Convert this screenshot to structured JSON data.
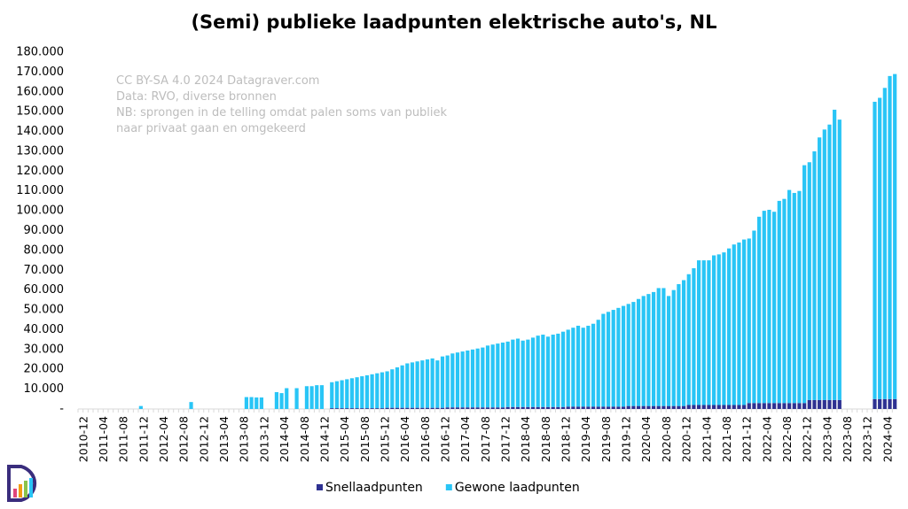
{
  "chart_data": {
    "type": "bar",
    "stacked": true,
    "title": "(Semi) publieke laadpunten elektrische auto's, NL",
    "annotations": [
      "CC BY-SA 4.0 2024 Datagraver.com",
      "Data: RVO, diverse bronnen",
      "NB: sprongen in de telling omdat palen soms van publiek",
      "naar privaat gaan en omgekeerd"
    ],
    "ylim": [
      0,
      180000
    ],
    "yticks": [
      {
        "value": 0,
        "label": "-"
      },
      {
        "value": 10000,
        "label": "10.000"
      },
      {
        "value": 20000,
        "label": "20.000"
      },
      {
        "value": 30000,
        "label": "30.000"
      },
      {
        "value": 40000,
        "label": "40.000"
      },
      {
        "value": 50000,
        "label": "50.000"
      },
      {
        "value": 60000,
        "label": "60.000"
      },
      {
        "value": 70000,
        "label": "70.000"
      },
      {
        "value": 80000,
        "label": "80.000"
      },
      {
        "value": 90000,
        "label": "90.000"
      },
      {
        "value": 100000,
        "label": "100.000"
      },
      {
        "value": 110000,
        "label": "110.000"
      },
      {
        "value": 120000,
        "label": "120.000"
      },
      {
        "value": 130000,
        "label": "130.000"
      },
      {
        "value": 140000,
        "label": "140.000"
      },
      {
        "value": 150000,
        "label": "150.000"
      },
      {
        "value": 160000,
        "label": "160.000"
      },
      {
        "value": 170000,
        "label": "170.000"
      },
      {
        "value": 180000,
        "label": "180.000"
      }
    ],
    "grid": false,
    "legend": "bottom",
    "categories": [
      "2010-12",
      null,
      null,
      null,
      "2011-04",
      null,
      null,
      null,
      "2011-08",
      null,
      null,
      null,
      "2011-12",
      null,
      null,
      null,
      "2012-04",
      null,
      null,
      null,
      "2012-08",
      null,
      null,
      null,
      "2012-12",
      null,
      null,
      null,
      "2013-04",
      null,
      null,
      null,
      "2013-08",
      null,
      null,
      null,
      "2013-12",
      null,
      null,
      null,
      "2014-04",
      null,
      null,
      null,
      "2014-08",
      null,
      null,
      null,
      "2014-12",
      null,
      null,
      null,
      "2015-04",
      null,
      null,
      null,
      "2015-08",
      null,
      null,
      null,
      "2015-12",
      null,
      null,
      null,
      "2016-04",
      null,
      null,
      null,
      "2016-08",
      null,
      null,
      null,
      "2016-12",
      null,
      null,
      null,
      "2017-04",
      null,
      null,
      null,
      "2017-08",
      null,
      null,
      null,
      "2017-12",
      null,
      null,
      null,
      "2018-04",
      null,
      null,
      null,
      "2018-08",
      null,
      null,
      null,
      "2018-12",
      null,
      null,
      null,
      "2019-04",
      null,
      null,
      null,
      "2019-08",
      null,
      null,
      null,
      "2019-12",
      null,
      null,
      null,
      "2020-04",
      null,
      null,
      null,
      "2020-08",
      null,
      null,
      null,
      "2020-12",
      null,
      null,
      null,
      "2021-04",
      null,
      null,
      null,
      "2021-08",
      null,
      null,
      null,
      "2021-12",
      null,
      null,
      null,
      "2022-04",
      null,
      null,
      null,
      "2022-08",
      null,
      null,
      null,
      "2022-12",
      null,
      null,
      null,
      "2023-04",
      null,
      null,
      null,
      "2023-08",
      null,
      null,
      null,
      "2023-12",
      null,
      null,
      null,
      "2024-04",
      null,
      null
    ],
    "series": [
      {
        "name": "Snellaadpunten",
        "color": "#2e3192",
        "values": [
          null,
          null,
          null,
          null,
          null,
          null,
          null,
          null,
          null,
          null,
          null,
          null,
          0,
          null,
          null,
          null,
          null,
          null,
          null,
          null,
          null,
          null,
          0,
          null,
          null,
          null,
          null,
          null,
          null,
          null,
          null,
          null,
          null,
          0,
          0,
          0,
          0,
          null,
          null,
          0,
          0,
          0,
          null,
          0,
          null,
          0,
          0,
          0,
          0,
          null,
          400,
          400,
          400,
          400,
          400,
          400,
          400,
          400,
          400,
          400,
          400,
          600,
          600,
          600,
          600,
          600,
          600,
          600,
          600,
          600,
          600,
          600,
          600,
          800,
          800,
          800,
          800,
          800,
          800,
          800,
          800,
          800,
          800,
          800,
          800,
          1000,
          1000,
          1000,
          1000,
          1000,
          1000,
          1000,
          1000,
          1000,
          1000,
          1000,
          1000,
          1200,
          1200,
          1200,
          1200,
          1200,
          1200,
          1200,
          1200,
          1200,
          1200,
          1200,
          1200,
          1500,
          1500,
          1500,
          1500,
          1500,
          1500,
          1500,
          1500,
          1500,
          1500,
          1500,
          1500,
          2000,
          2000,
          2000,
          2000,
          2000,
          2000,
          2000,
          2000,
          2000,
          2000,
          2000,
          2000,
          3000,
          3000,
          3000,
          3000,
          3000,
          3000,
          3000,
          3000,
          3000,
          3000,
          3000,
          3000,
          4500,
          4500,
          4500,
          4500,
          4500,
          4500,
          4500,
          null,
          null,
          null,
          null,
          null,
          null,
          5000,
          5000,
          5000,
          5000,
          5000
        ]
      },
      {
        "name": "Gewone laadpunten",
        "color": "#29c5f6",
        "values": [
          null,
          null,
          null,
          null,
          null,
          null,
          null,
          null,
          null,
          null,
          null,
          null,
          1500,
          null,
          null,
          null,
          null,
          null,
          null,
          null,
          null,
          null,
          3500,
          null,
          null,
          null,
          null,
          null,
          null,
          null,
          null,
          null,
          null,
          6000,
          6000,
          5800,
          5800,
          null,
          null,
          8500,
          8000,
          10500,
          null,
          10500,
          null,
          11500,
          11500,
          12000,
          12000,
          null,
          13100,
          13600,
          14100,
          14600,
          15100,
          15600,
          16100,
          16600,
          17100,
          17600,
          18100,
          18400,
          19400,
          20400,
          21400,
          22400,
          22900,
          23400,
          23900,
          24400,
          24900,
          23900,
          25900,
          26200,
          27200,
          27700,
          28200,
          28700,
          29200,
          29700,
          30200,
          31200,
          31700,
          32200,
          32700,
          33000,
          34000,
          34500,
          33500,
          34000,
          35000,
          36000,
          36500,
          35500,
          36500,
          37000,
          38000,
          38800,
          39800,
          40800,
          39800,
          40800,
          41800,
          43800,
          46800,
          47800,
          48800,
          49800,
          50800,
          51500,
          52500,
          54000,
          55500,
          56500,
          57500,
          59500,
          59500,
          55500,
          58500,
          61500,
          63500,
          66000,
          69000,
          73000,
          73000,
          73000,
          75500,
          76000,
          77000,
          79000,
          81000,
          82000,
          83500,
          83000,
          87000,
          94000,
          97000,
          97500,
          96500,
          102000,
          103000,
          107500,
          106000,
          107000,
          120000,
          120000,
          125500,
          132500,
          136500,
          139000,
          146500,
          141500,
          null,
          null,
          null,
          null,
          null,
          null,
          150000,
          152000,
          157000,
          163000,
          164000
        ]
      }
    ]
  }
}
